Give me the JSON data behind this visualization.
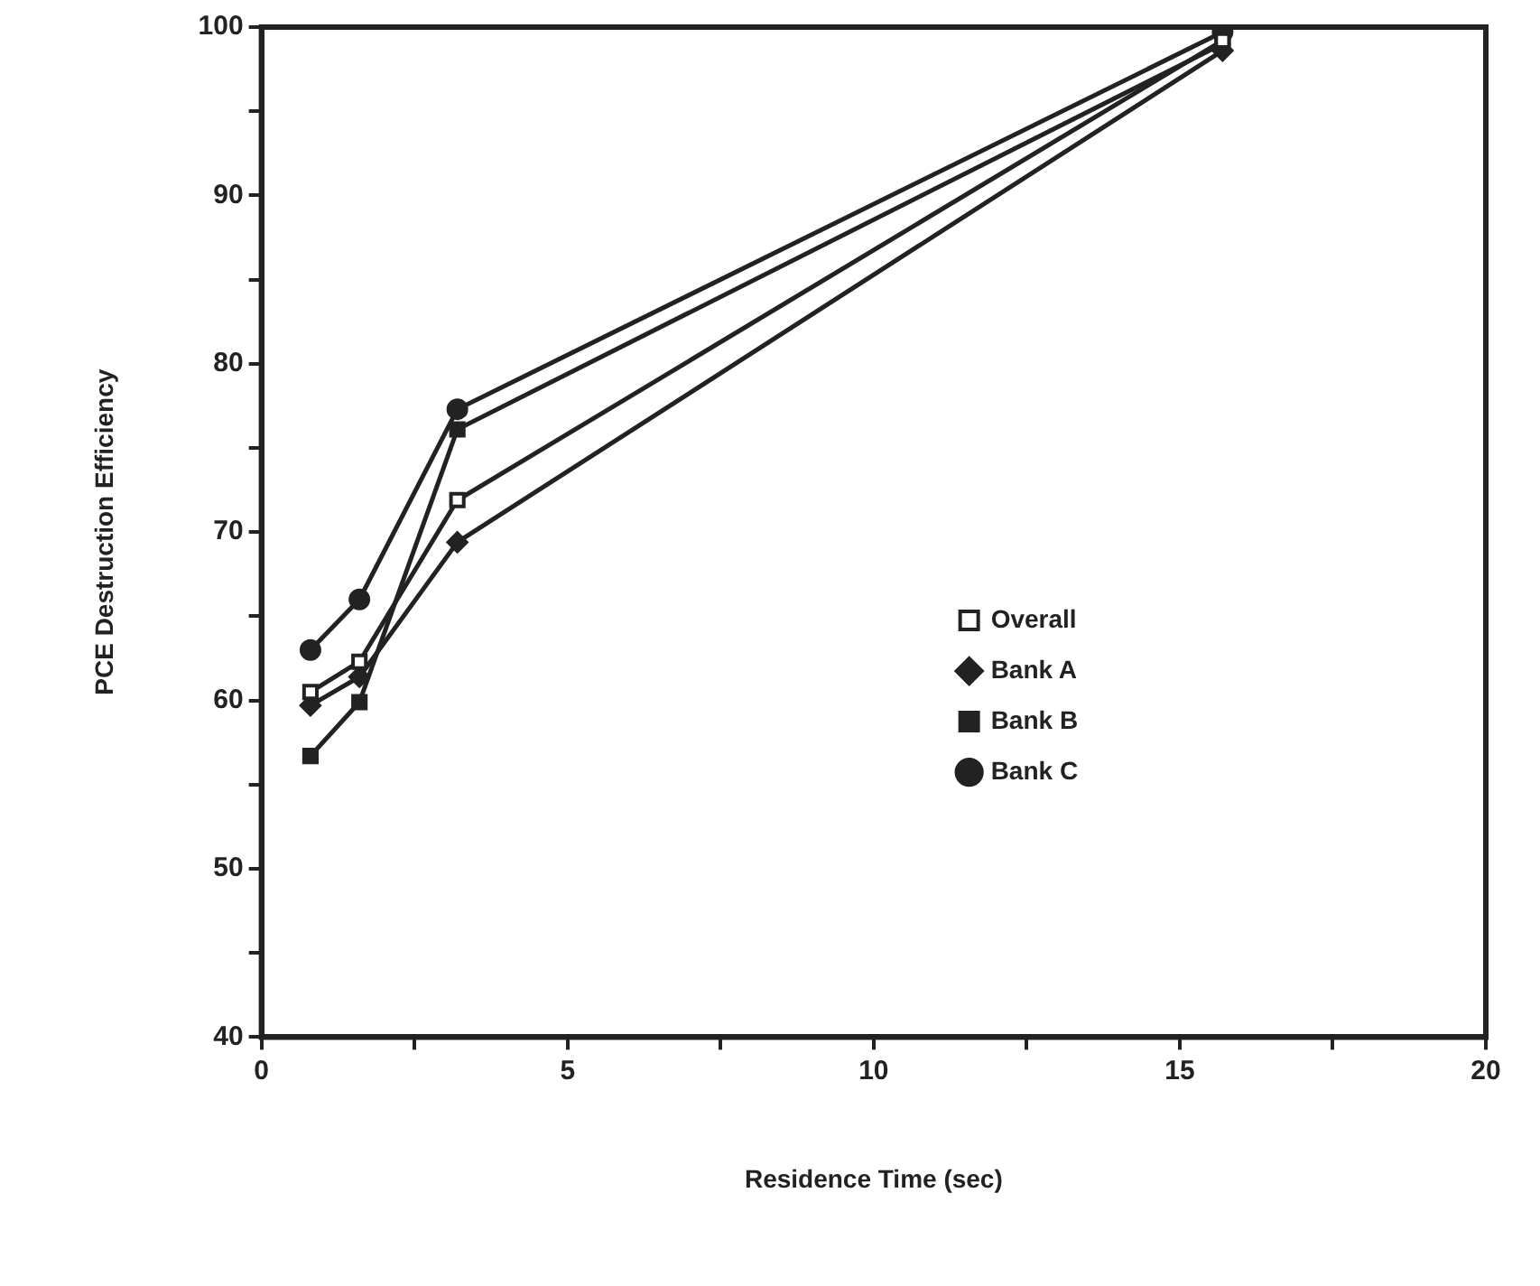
{
  "chart_data": {
    "type": "line",
    "xlabel": "Residence Time (sec)",
    "ylabel": "PCE Destruction Efficiency",
    "xlim": [
      0,
      20
    ],
    "ylim": [
      40,
      100
    ],
    "xticks": [
      0,
      {
        "value": 2.5,
        "label": null
      },
      5,
      {
        "value": 7.5,
        "label": null
      },
      10,
      {
        "value": 12.5,
        "label": null
      },
      15,
      {
        "value": 17.5,
        "label": null
      },
      20
    ],
    "yticks": [
      40,
      {
        "value": 45,
        "label": null
      },
      50,
      {
        "value": 55,
        "label": null
      },
      60,
      {
        "value": 65,
        "label": null
      },
      70,
      {
        "value": 75,
        "label": null
      },
      80,
      {
        "value": 85,
        "label": null
      },
      90,
      {
        "value": 95,
        "label": null
      },
      100
    ],
    "grid": false,
    "legend": "right",
    "series": [
      {
        "name": "Overall",
        "color": "#222222",
        "marker": "square_open",
        "x": [
          0.8,
          1.6,
          3.2,
          15.7
        ],
        "values": [
          60.5,
          62.3,
          71.9,
          99.2
        ]
      },
      {
        "name": "Bank A",
        "color": "#222222",
        "marker": "diamond",
        "x": [
          0.8,
          1.6,
          3.2,
          15.7
        ],
        "values": [
          59.7,
          61.4,
          69.4,
          98.6
        ]
      },
      {
        "name": "Bank B",
        "color": "#222222",
        "marker": "square",
        "x": [
          0.8,
          1.6,
          3.2,
          15.7
        ],
        "values": [
          56.7,
          59.9,
          76.1,
          99.0
        ]
      },
      {
        "name": "Bank C",
        "color": "#222222",
        "marker": "circle",
        "x": [
          0.8,
          1.6,
          3.2,
          15.7
        ],
        "values": [
          63.0,
          66.0,
          77.3,
          99.7
        ]
      }
    ]
  }
}
